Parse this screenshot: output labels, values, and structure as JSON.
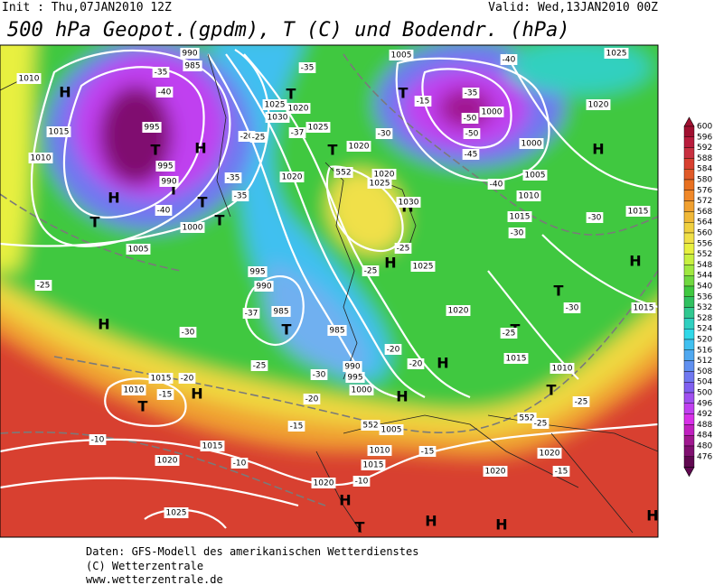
{
  "header": {
    "init": "Init : Thu,07JAN2010 12Z",
    "valid": "Valid: Wed,13JAN2010 00Z",
    "title": "500 hPa Geopot.(gpdm), T (C) und Bodendr. (hPa)"
  },
  "legend": {
    "levels": [
      600,
      596,
      592,
      588,
      584,
      580,
      576,
      572,
      568,
      564,
      560,
      556,
      552,
      548,
      544,
      540,
      536,
      532,
      528,
      524,
      520,
      516,
      512,
      508,
      504,
      500,
      496,
      492,
      488,
      484,
      480,
      476
    ],
    "colors": [
      "#a01030",
      "#b81c3c",
      "#c83040",
      "#d84030",
      "#e05a28",
      "#e87020",
      "#f08828",
      "#f0a030",
      "#f0b838",
      "#f0d040",
      "#f0e048",
      "#e8f040",
      "#c8f040",
      "#a0e840",
      "#70d840",
      "#40c840",
      "#30c060",
      "#30c890",
      "#30d0c0",
      "#30d8e8",
      "#40c0f0",
      "#50a8f0",
      "#6090f0",
      "#7078f0",
      "#8060f0",
      "#a050f0",
      "#c040f0",
      "#d830e8",
      "#c020c0",
      "#a01890",
      "#801070",
      "#600850"
    ]
  },
  "map": {
    "pressure_centers": [
      "H",
      "H",
      "T",
      "T",
      "T",
      "H",
      "T",
      "T",
      "H",
      "T",
      "H",
      "T",
      "T",
      "T",
      "H",
      "T",
      "H",
      "H",
      "T",
      "H",
      "H",
      "T",
      "H",
      "H",
      "T",
      "H",
      "H",
      "T",
      "H"
    ],
    "contour_labels": [
      "1010",
      "1015",
      "1010",
      "990",
      "985",
      "-35",
      "-40",
      "995",
      "995",
      "990",
      "1000",
      "1005",
      "-40",
      "-25",
      "-30",
      "1015",
      "1010",
      "-15",
      "-20",
      "-10",
      "1015",
      "1020",
      "-10",
      "1025",
      "1020",
      "1005",
      "1010",
      "1015",
      "-10",
      "-15",
      "-15",
      "-20",
      "1000",
      "995",
      "990",
      "-30",
      "-25",
      "985",
      "985",
      "-37",
      "990",
      "995",
      "1025",
      "1030",
      "1020",
      "1025",
      "-37",
      "1020",
      "1020",
      "-35",
      "1005",
      "-15",
      "-35",
      "1000",
      "-50",
      "-50",
      "1000",
      "-45",
      "1005",
      "-40",
      "1010",
      "1015",
      "-30",
      "-30",
      "1015",
      "-40",
      "1025",
      "1020",
      "-25",
      "1025",
      "1020",
      "-25",
      "1015",
      "-20",
      "-20",
      "1010",
      "-25",
      "1015",
      "-30",
      "1020",
      "1020",
      "-15",
      "1025",
      "1020",
      "552",
      "552",
      "552",
      "-25",
      "1030",
      "-30",
      "-25",
      "-35",
      "-35",
      "-20",
      "-25"
    ]
  },
  "footer": [
    "Daten: GFS-Modell des amerikanischen Wetterdienstes",
    "(C) Wetterzentrale",
    "www.wetterzentrale.de"
  ]
}
